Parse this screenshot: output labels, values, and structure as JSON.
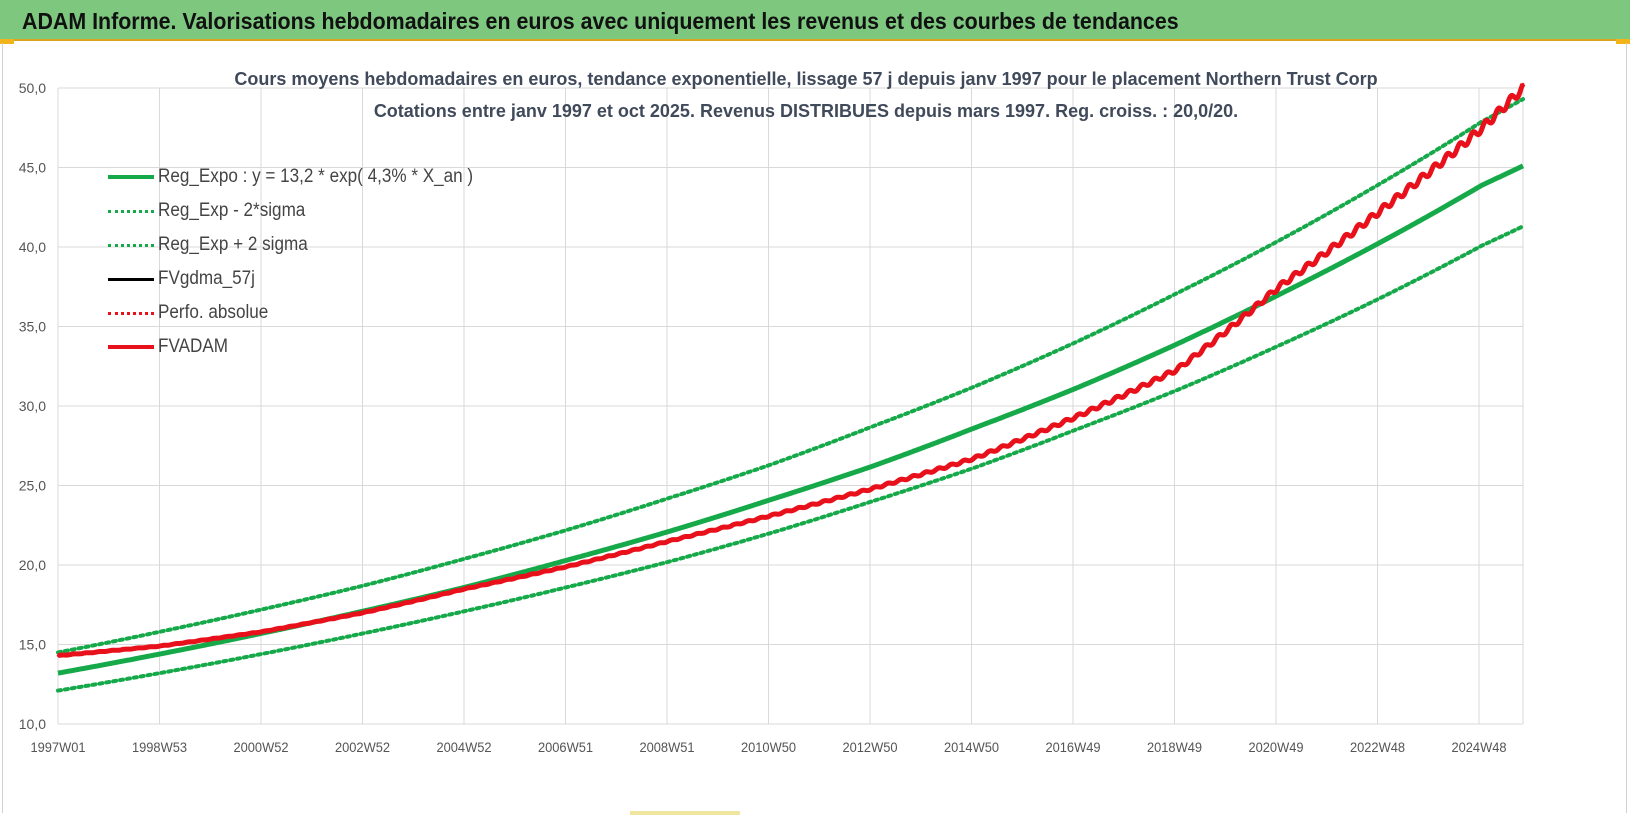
{
  "header": {
    "title": "ADAM Informe. Valorisations hebdomadaires en euros avec uniquement les revenus et des courbes de tendances"
  },
  "colors": {
    "banner": "#7dc77f",
    "green": "#16a94a",
    "red": "#e8101a",
    "black": "#000000",
    "grid": "#d9d9d9"
  },
  "chart_data": {
    "type": "line",
    "title": "Cours moyens hebdomadaires en euros, tendance exponentielle, lissage 57 j depuis janv 1997 pour le placement Northern Trust Corp",
    "subtitle": "Cotations entre janv 1997 et oct 2025. Revenus DISTRIBUES depuis mars 1997. Reg. croiss. : 20,0/20.",
    "xlabel": "",
    "ylabel": "",
    "ylim": [
      10,
      50
    ],
    "yticks": [
      "10,0",
      "15,0",
      "20,0",
      "25,0",
      "30,0",
      "35,0",
      "40,0",
      "45,0",
      "50,0"
    ],
    "xticks": [
      "1997W01",
      "1998W53",
      "2000W52",
      "2002W52",
      "2004W52",
      "2006W51",
      "2008W51",
      "2010W50",
      "2012W50",
      "2014W50",
      "2016W49",
      "2018W49",
      "2020W49",
      "2022W48",
      "2024W48"
    ],
    "grid": true,
    "legend_position": "top-left",
    "x": [
      1997.0,
      1999.0,
      2001.0,
      2003.0,
      2005.0,
      2007.0,
      2009.0,
      2011.0,
      2013.0,
      2015.0,
      2017.0,
      2019.0,
      2021.0,
      2023.0,
      2025.0,
      2025.8
    ],
    "series": [
      {
        "name": "Reg_Expo : y = 13,2 * exp( 4,3% *  X_an )",
        "style": "solid-green",
        "values": [
          13.2,
          14.4,
          15.7,
          17.1,
          18.6,
          20.3,
          22.1,
          24.1,
          26.2,
          28.6,
          31.1,
          33.9,
          37.0,
          40.3,
          43.9,
          45.1
        ]
      },
      {
        "name": "Reg_Exp - 2*sigma",
        "style": "dotted-green",
        "values": [
          12.1,
          13.2,
          14.4,
          15.7,
          17.1,
          18.6,
          20.2,
          22.0,
          24.0,
          26.1,
          28.5,
          31.0,
          33.8,
          36.8,
          40.1,
          41.3
        ]
      },
      {
        "name": "Reg_Exp + 2 sigma",
        "style": "dotted-green",
        "values": [
          14.5,
          15.8,
          17.2,
          18.7,
          20.4,
          22.2,
          24.2,
          26.3,
          28.7,
          31.2,
          34.0,
          37.1,
          40.4,
          44.0,
          47.9,
          49.3
        ]
      },
      {
        "name": "FVgdma_57j",
        "style": "solid-black",
        "values": [
          14.3,
          14.9,
          15.8,
          17.0,
          18.5,
          19.9,
          21.5,
          23.1,
          24.8,
          26.7,
          29.3,
          32.3,
          37.5,
          42.3,
          47.5,
          50.0
        ]
      },
      {
        "name": "Perfo. absolue",
        "style": "dotted-red",
        "values": [
          14.3,
          14.9,
          15.8,
          17.0,
          18.5,
          19.9,
          21.5,
          23.1,
          24.8,
          26.7,
          29.3,
          32.3,
          37.5,
          42.3,
          47.5,
          50.0
        ]
      },
      {
        "name": "FVADAM",
        "style": "solid-red",
        "values": [
          14.3,
          14.9,
          15.8,
          17.0,
          18.5,
          19.9,
          21.5,
          23.1,
          24.8,
          26.7,
          29.3,
          32.3,
          37.5,
          42.3,
          47.5,
          50.0
        ]
      }
    ]
  }
}
